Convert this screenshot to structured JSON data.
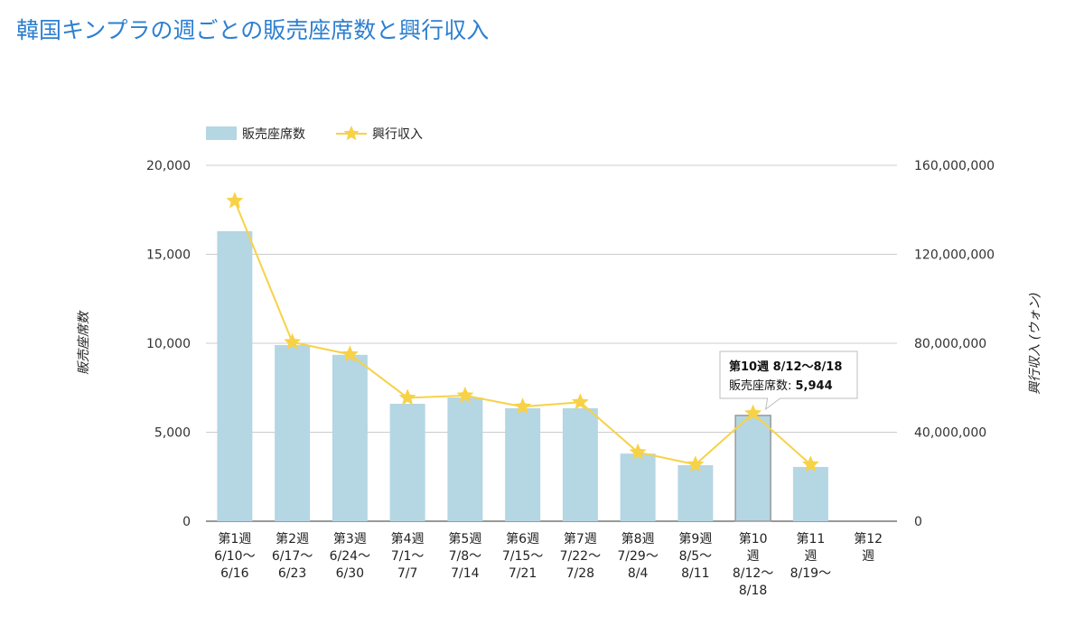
{
  "title": "韓国キンプラの週ごとの販売座席数と興行収入",
  "chart_data": {
    "type": "bar",
    "categories": [
      [
        "第1週",
        "6/10〜",
        "6/16"
      ],
      [
        "第2週",
        "6/17〜",
        "6/23"
      ],
      [
        "第3週",
        "6/24〜",
        "6/30"
      ],
      [
        "第4週",
        "7/1〜",
        "7/7"
      ],
      [
        "第5週",
        "7/8〜",
        "7/14"
      ],
      [
        "第6週",
        "7/15〜",
        "7/21"
      ],
      [
        "第7週",
        "7/22〜",
        "7/28"
      ],
      [
        "第8週",
        "7/29〜",
        "8/4"
      ],
      [
        "第9週",
        "8/5〜",
        "8/11"
      ],
      [
        "第10",
        "週",
        "8/12〜",
        "8/18"
      ],
      [
        "第11",
        "週",
        "8/19〜"
      ],
      [
        "第12",
        "週"
      ]
    ],
    "series": [
      {
        "name": "販売座席数",
        "type": "bar",
        "axis": "left",
        "color": "#b5d6e3",
        "values": [
          16300,
          9900,
          9350,
          6600,
          6950,
          6350,
          6350,
          3800,
          3150,
          5944,
          3050,
          null
        ]
      },
      {
        "name": "興行収入",
        "type": "line",
        "axis": "right",
        "color": "#f7d247",
        "values": [
          144000000,
          80500000,
          75000000,
          55500000,
          56500000,
          51500000,
          53500000,
          31000000,
          25500000,
          48500000,
          25500000,
          null
        ]
      }
    ],
    "y_left": {
      "label": "販売座席数",
      "range": [
        0,
        20000
      ],
      "ticks": [
        "0",
        "5,000",
        "10,000",
        "15,000",
        "20,000"
      ]
    },
    "y_right": {
      "label": "興行収入 (ウォン)",
      "range": [
        0,
        160000000
      ],
      "ticks": [
        "0",
        "40,000,000",
        "80,000,000",
        "120,000,000",
        "160,000,000"
      ]
    },
    "legend_position": "top-left",
    "grid": true,
    "highlight_index": 9,
    "tooltip": {
      "title": "第10週 8/12〜8/18",
      "label": "販売座席数:",
      "value": "5,944"
    }
  }
}
